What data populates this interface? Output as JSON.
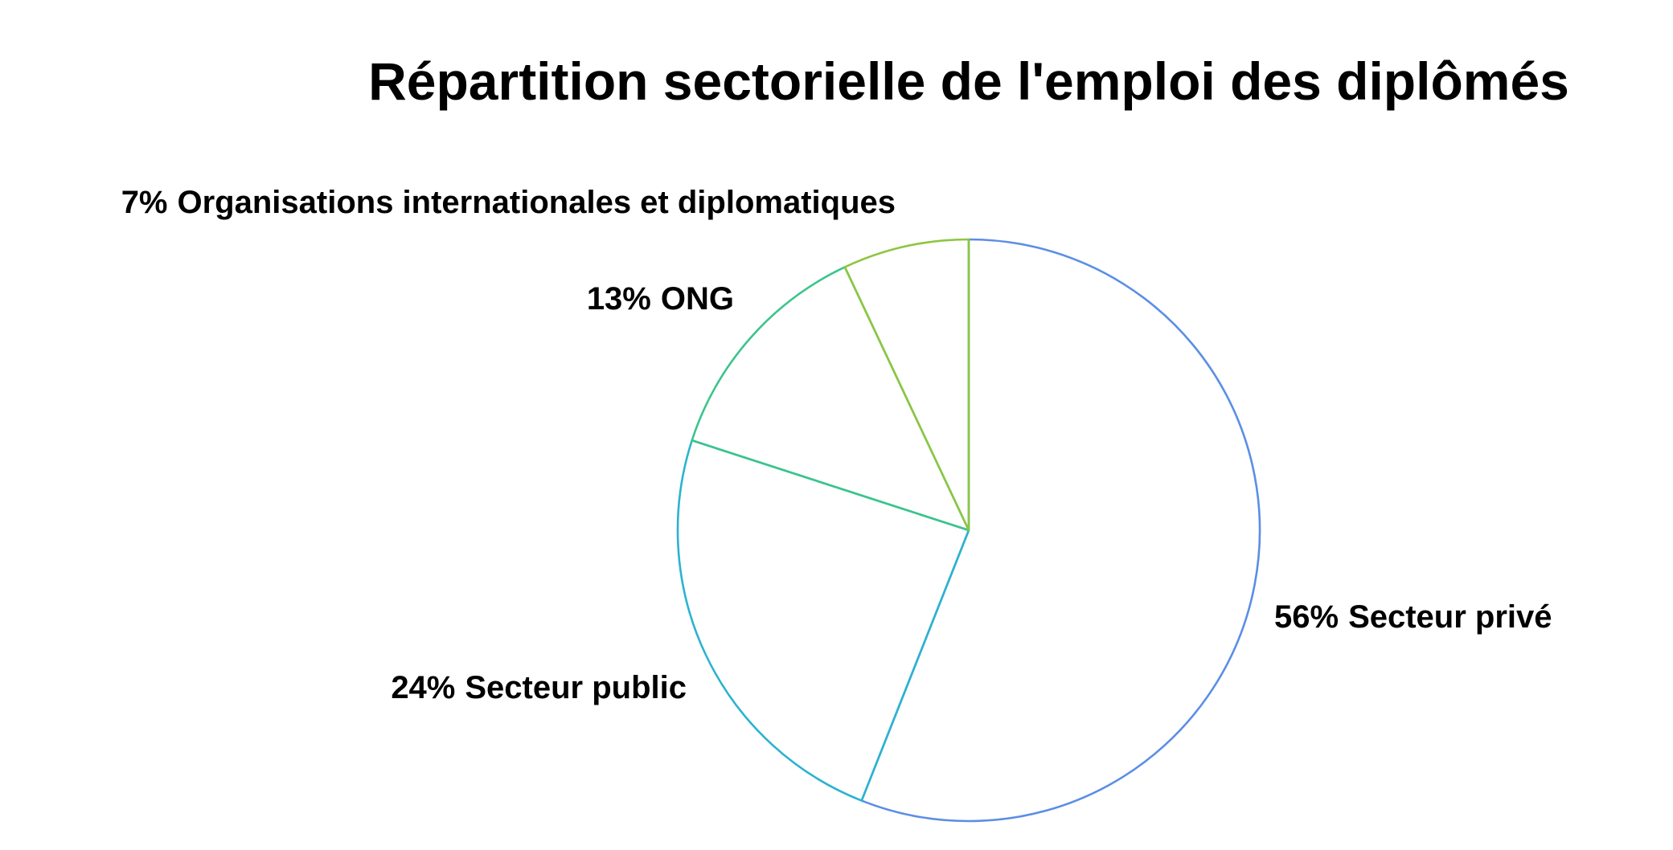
{
  "chart_data": {
    "type": "pie",
    "title": "Répartition sectorielle de l'emploi des diplômés",
    "categories": [
      "Secteur privé",
      "Secteur public",
      "ONG",
      "Organisations internationales et diplomatiques"
    ],
    "values": [
      56,
      24,
      13,
      7
    ],
    "value_labels": [
      "56%",
      "24%",
      "13%",
      "7%"
    ],
    "colors": [
      "#5b8ee6",
      "#2bb3cf",
      "#3cc48c",
      "#8cc63f"
    ]
  }
}
